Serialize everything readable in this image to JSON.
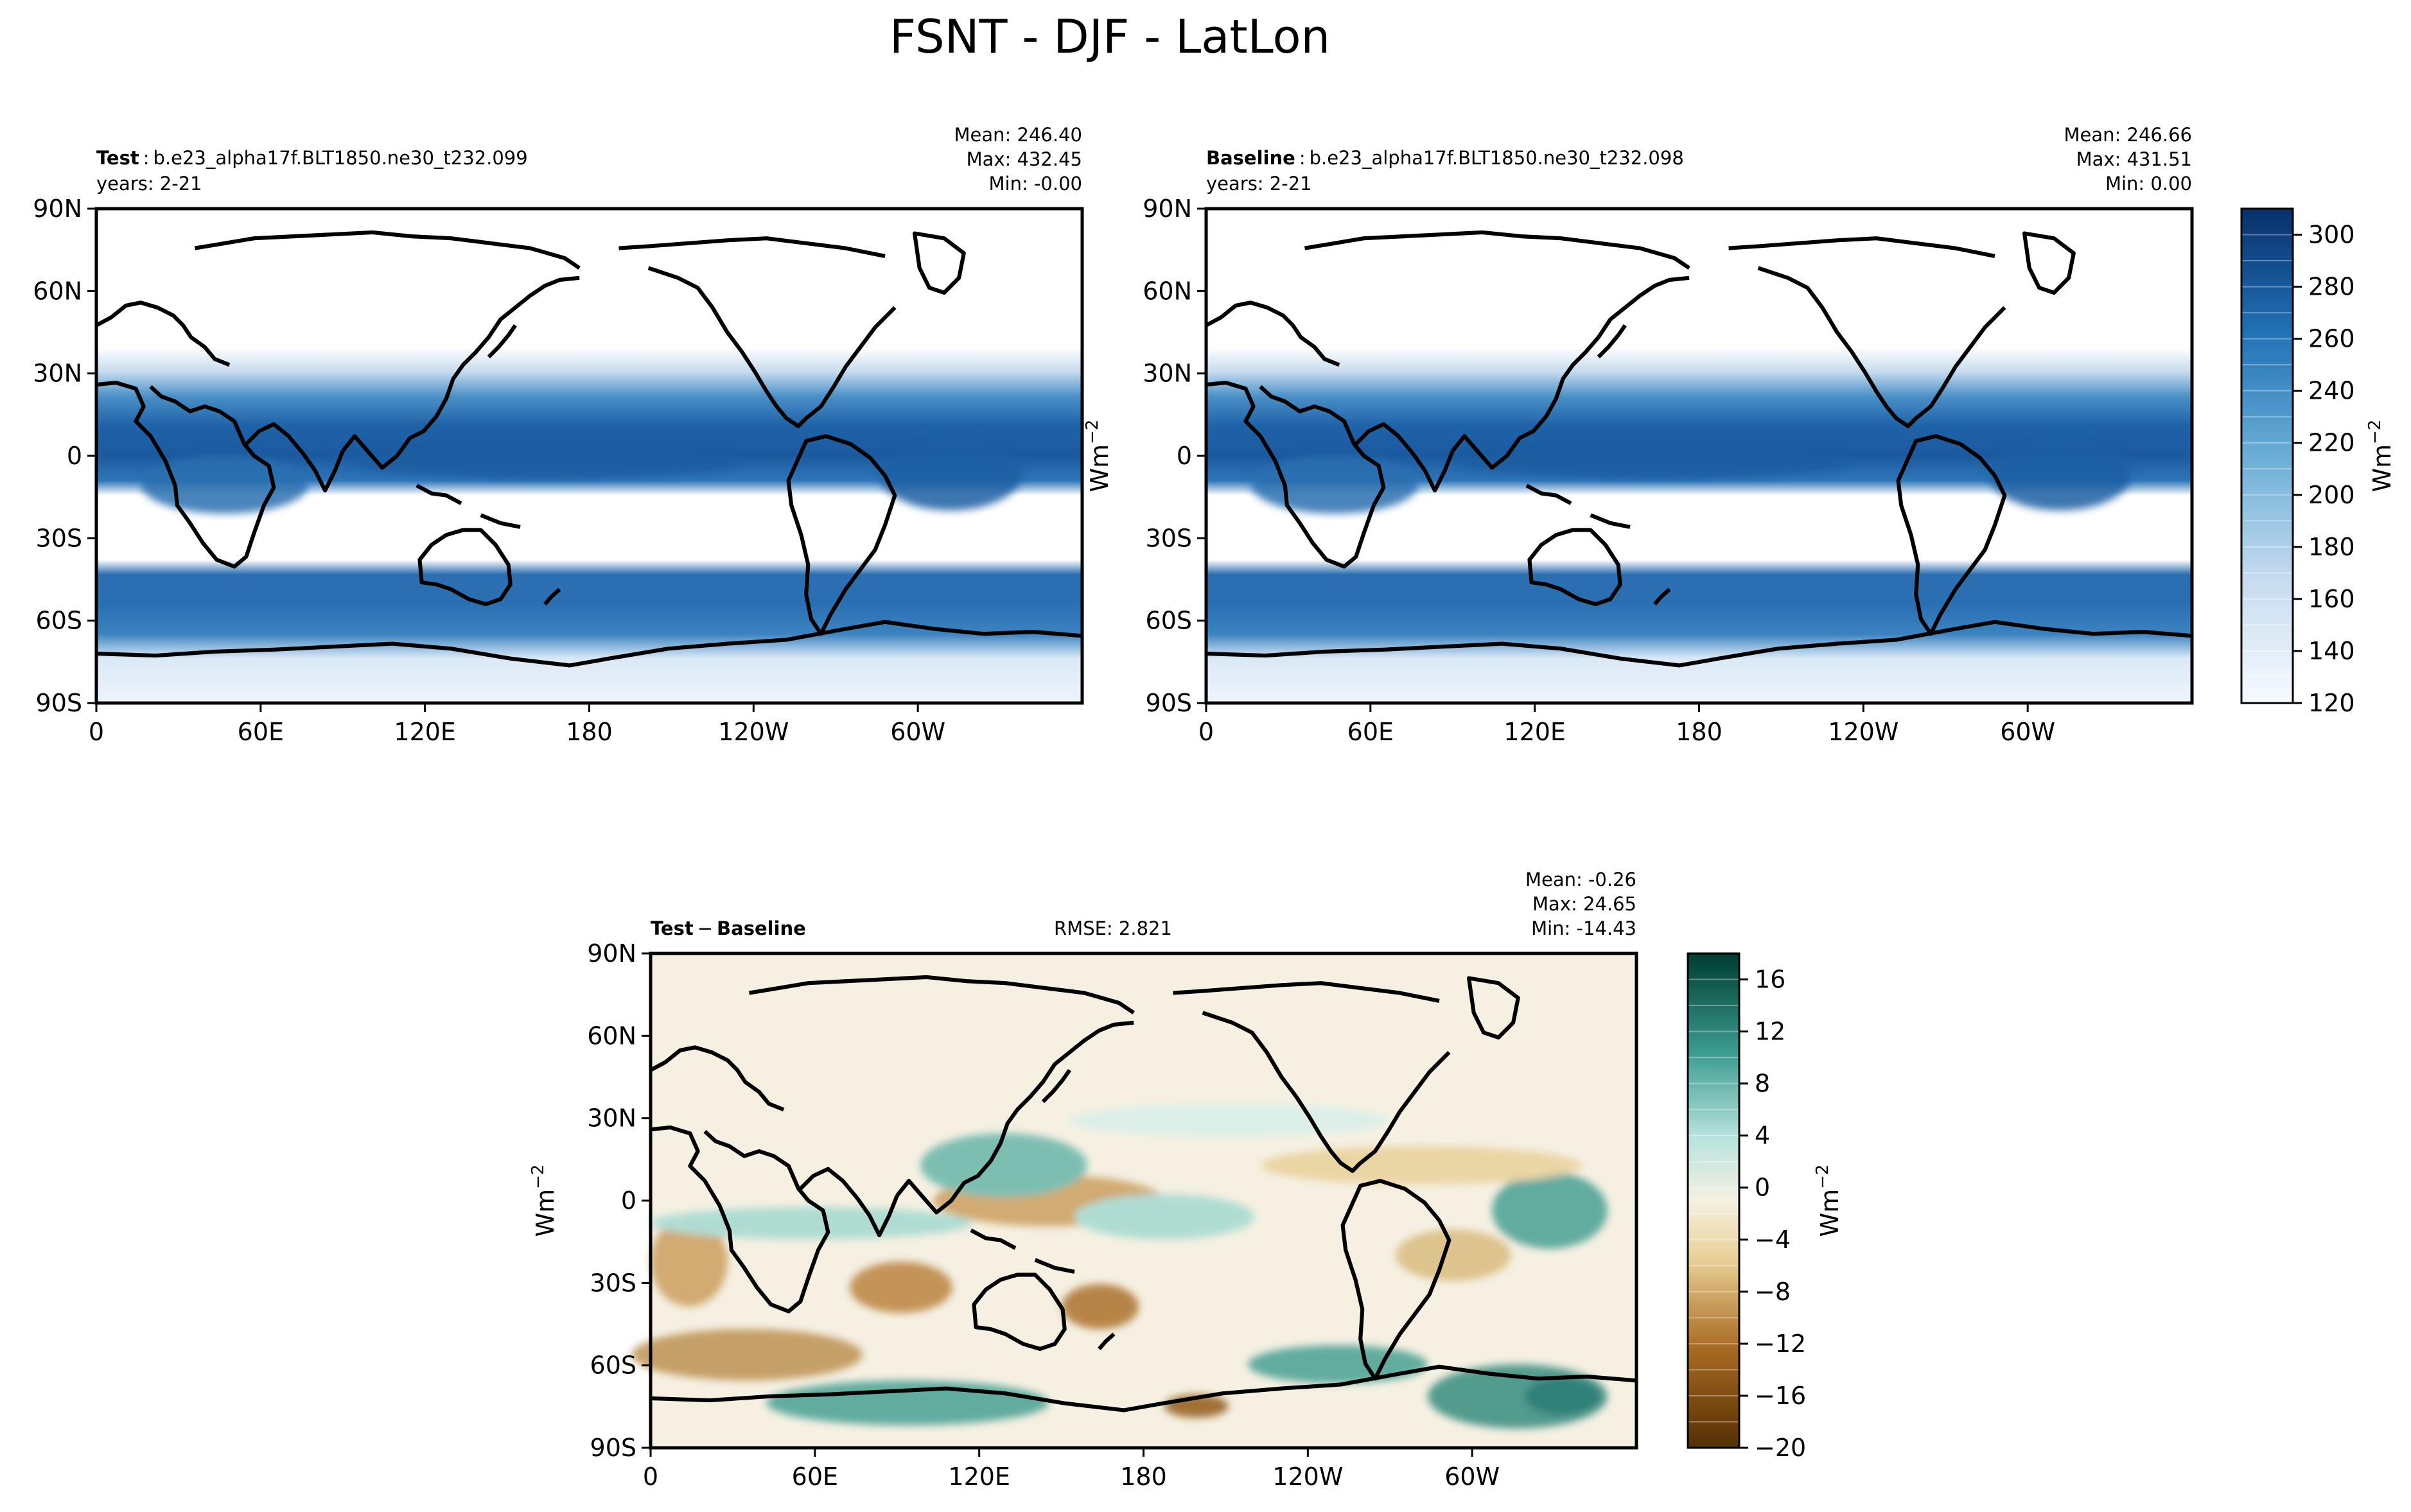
{
  "figure": {
    "title": "FSNT - DJF - LatLon"
  },
  "axes": {
    "lon_ticks": [
      "0",
      "60E",
      "120E",
      "180",
      "120W",
      "60W"
    ],
    "lat_ticks": [
      "90N",
      "60N",
      "30N",
      "0",
      "30S",
      "60S",
      "90S"
    ],
    "units_label": "Wm$^{-2}$",
    "units_text": "Wm",
    "units_exp": "−2"
  },
  "panels": {
    "test": {
      "label": "Test",
      "case": "b.e23_alpha17f.BLT1850.ne30_t232.099",
      "years": "years: 2-21",
      "mean": "Mean: 246.40",
      "max": "Max: 432.45",
      "min": "Min: -0.00"
    },
    "baseline": {
      "label": "Baseline",
      "case": "b.e23_alpha17f.BLT1850.ne30_t232.098",
      "years": "years: 2-21",
      "mean": "Mean: 246.66",
      "max": "Max: 431.51",
      "min": "Min:  0.00"
    },
    "diff": {
      "label_a": "Test",
      "op": "−",
      "label_b": "Baseline",
      "rmse": "RMSE: 2.821",
      "mean": "Mean: -0.26",
      "max": "Max: 24.65",
      "min": "Min: -14.43"
    }
  },
  "colorbars": {
    "main": {
      "ticks": [
        "120",
        "140",
        "160",
        "180",
        "200",
        "220",
        "240",
        "260",
        "280",
        "300"
      ],
      "range": [
        120,
        310
      ],
      "colors_light_to_dark": [
        "#f7fbff",
        "#08306b"
      ]
    },
    "diff": {
      "ticks": [
        "−20",
        "−16",
        "−12",
        "−8",
        "−4",
        "0",
        "4",
        "8",
        "12",
        "16"
      ],
      "range": [
        -20,
        18
      ],
      "colors": {
        "neg": "#543005",
        "mid": "#f5f0e2",
        "pos": "#003c30"
      }
    }
  },
  "chart_data": [
    {
      "type": "heatmap",
      "panel": "test",
      "variable": "FSNT",
      "x_range": [
        0,
        360
      ],
      "y_range": [
        -90,
        90
      ],
      "value_range": [
        120,
        310
      ],
      "stats": {
        "mean": 246.4,
        "max": 432.45,
        "min": -0.0
      }
    },
    {
      "type": "heatmap",
      "panel": "baseline",
      "variable": "FSNT",
      "x_range": [
        0,
        360
      ],
      "y_range": [
        -90,
        90
      ],
      "value_range": [
        120,
        310
      ],
      "stats": {
        "mean": 246.66,
        "max": 431.51,
        "min": 0.0
      }
    },
    {
      "type": "heatmap",
      "panel": "test-baseline",
      "variable": "FSNT",
      "x_range": [
        0,
        360
      ],
      "y_range": [
        -90,
        90
      ],
      "value_range": [
        -20,
        18
      ],
      "stats": {
        "mean": -0.26,
        "max": 24.65,
        "min": -14.43,
        "rmse": 2.821
      }
    }
  ]
}
